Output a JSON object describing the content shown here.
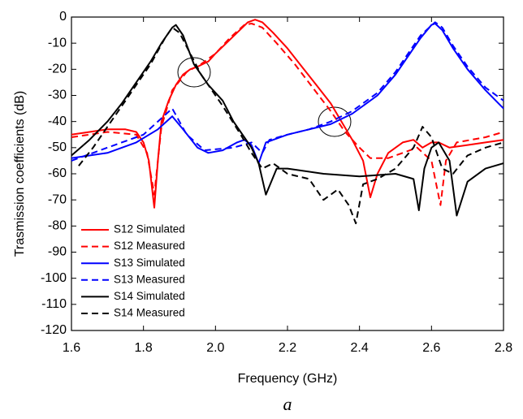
{
  "chart_data": {
    "type": "line",
    "xlabel": "Frequency (GHz)",
    "ylabel": "Trasmission coefficients (dB)",
    "caption": "a",
    "xlim": [
      1.6,
      2.8
    ],
    "xticks": [
      1.6,
      1.8,
      {
        "value": 2,
        "label": "2.0"
      },
      2.2,
      2.4,
      2.6,
      2.8
    ],
    "ylim": [
      -120,
      0
    ],
    "yticks": [
      -120,
      -110,
      -100,
      -90,
      -80,
      -70,
      -60,
      -50,
      -40,
      -30,
      -20,
      -10,
      0
    ],
    "legend": "lower left",
    "series": [
      {
        "name": "S12 Simulated",
        "color": "#ff0000",
        "dashed": false,
        "x": [
          1.6,
          1.65,
          1.7,
          1.75,
          1.78,
          1.8,
          1.815,
          1.83,
          1.84,
          1.85,
          1.87,
          1.89,
          1.91,
          1.93,
          1.95,
          1.98,
          2.0,
          2.03,
          2.06,
          2.09,
          2.11,
          2.13,
          2.16,
          2.2,
          2.24,
          2.28,
          2.32,
          2.35,
          2.38,
          2.41,
          2.43,
          2.45,
          2.48,
          2.52,
          2.55,
          2.575,
          2.6,
          2.62,
          2.65,
          2.7,
          2.75,
          2.8
        ],
        "values": [
          -45,
          -44,
          -43,
          -43,
          -44,
          -48,
          -55,
          -73,
          -55,
          -40,
          -32,
          -26,
          -22,
          -20,
          -19,
          -17,
          -14,
          -10,
          -6,
          -2,
          -1,
          -2,
          -6,
          -12,
          -19,
          -26,
          -33,
          -40,
          -47,
          -55,
          -69,
          -60,
          -52,
          -48,
          -47,
          -50,
          -48,
          -48,
          -50,
          -49,
          -48,
          -47
        ]
      },
      {
        "name": "S12 Measured",
        "color": "#ff0000",
        "dashed": true,
        "x": [
          1.6,
          1.7,
          1.78,
          1.81,
          1.83,
          1.85,
          1.88,
          1.92,
          1.96,
          2.0,
          2.04,
          2.08,
          2.1,
          2.13,
          2.17,
          2.22,
          2.27,
          2.32,
          2.36,
          2.4,
          2.43,
          2.48,
          2.52,
          2.56,
          2.6,
          2.625,
          2.64,
          2.67,
          2.75,
          2.8
        ],
        "values": [
          -46,
          -44,
          -45,
          -52,
          -68,
          -42,
          -28,
          -21,
          -18,
          -14,
          -8,
          -3,
          -2.5,
          -4,
          -10,
          -18,
          -27,
          -36,
          -44,
          -50,
          -54,
          -54,
          -52,
          -50,
          -55,
          -72,
          -55,
          -48,
          -46,
          -44
        ]
      },
      {
        "name": "S13 Simulated",
        "color": "#0000ff",
        "dashed": false,
        "x": [
          1.6,
          1.7,
          1.78,
          1.84,
          1.88,
          1.91,
          1.95,
          1.98,
          2.02,
          2.06,
          2.08,
          2.1,
          2.12,
          2.14,
          2.2,
          2.26,
          2.32,
          2.38,
          2.45,
          2.5,
          2.54,
          2.57,
          2.6,
          2.61,
          2.63,
          2.66,
          2.7,
          2.75,
          2.8
        ],
        "values": [
          -54,
          -52,
          -48,
          -43,
          -38,
          -43,
          -50,
          -52,
          -51,
          -48,
          -47,
          -49,
          -56,
          -48,
          -45,
          -43,
          -41,
          -37,
          -30,
          -22,
          -14,
          -8,
          -3,
          -2.5,
          -5,
          -12,
          -20,
          -28,
          -35
        ]
      },
      {
        "name": "S13 Measured",
        "color": "#0000ff",
        "dashed": true,
        "x": [
          1.6,
          1.7,
          1.8,
          1.88,
          1.92,
          1.97,
          2.05,
          2.1,
          2.13,
          2.15,
          2.2,
          2.26,
          2.32,
          2.38,
          2.45,
          2.5,
          2.54,
          2.57,
          2.61,
          2.63,
          2.66,
          2.7,
          2.75,
          2.8
        ],
        "values": [
          -55,
          -50,
          -45,
          -35,
          -45,
          -51,
          -50,
          -48,
          -52,
          -47,
          -45,
          -43,
          -40,
          -36,
          -29,
          -21,
          -13,
          -7,
          -2,
          -4,
          -11,
          -19,
          -27,
          -32
        ]
      },
      {
        "name": "S14 Simulated",
        "color": "#000000",
        "dashed": false,
        "x": [
          1.6,
          1.65,
          1.7,
          1.74,
          1.78,
          1.82,
          1.85,
          1.88,
          1.89,
          1.91,
          1.94,
          1.98,
          2.02,
          2.05,
          2.08,
          2.1,
          2.12,
          2.14,
          2.17,
          2.2,
          2.3,
          2.4,
          2.5,
          2.55,
          2.565,
          2.58,
          2.6,
          2.62,
          2.65,
          2.67,
          2.7,
          2.75,
          2.8
        ],
        "values": [
          -53,
          -47,
          -40,
          -33,
          -25,
          -17,
          -10,
          -4,
          -3,
          -7,
          -18,
          -26,
          -32,
          -40,
          -46,
          -50,
          -56,
          -68,
          -58,
          -58,
          -60,
          -61,
          -60,
          -62,
          -74,
          -58,
          -50,
          -48,
          -55,
          -76,
          -63,
          -58,
          -56
        ]
      },
      {
        "name": "S14 Measured",
        "color": "#000000",
        "dashed": true,
        "x": [
          1.62,
          1.66,
          1.7,
          1.74,
          1.78,
          1.82,
          1.86,
          1.88,
          1.9,
          1.93,
          1.96,
          2.02,
          2.07,
          2.1,
          2.13,
          2.16,
          2.2,
          2.26,
          2.3,
          2.34,
          2.37,
          2.39,
          2.41,
          2.45,
          2.5,
          2.55,
          2.575,
          2.6,
          2.63,
          2.66,
          2.7,
          2.75,
          2.8
        ],
        "values": [
          -57,
          -50,
          -42,
          -34,
          -26,
          -18,
          -8,
          -4,
          -6,
          -14,
          -22,
          -34,
          -45,
          -52,
          -58,
          -56,
          -60,
          -62,
          -70,
          -66,
          -72,
          -79,
          -64,
          -62,
          -58,
          -50,
          -42,
          -46,
          -58,
          -60,
          -53,
          -50,
          -48
        ]
      }
    ]
  }
}
